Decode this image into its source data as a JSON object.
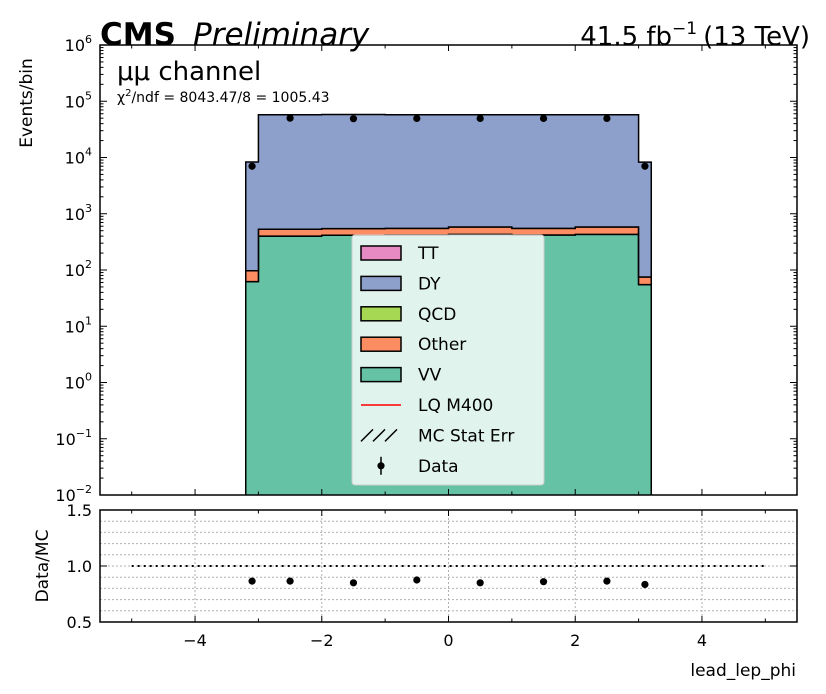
{
  "header": {
    "experiment": "CMS",
    "status": "Preliminary",
    "lumi_value": "41.5 fb",
    "lumi_exp": "−1",
    "energy": "(13 TeV)",
    "channel": "μμ channel",
    "chi2_label": "χ",
    "chi2_text": "/ndf = 8043.47/8 = 1005.43"
  },
  "chart_data": {
    "type": "histogram",
    "xlabel": "lead_lep_phi",
    "ylabel": "Events/bin",
    "xlim": [
      -5.5,
      5.5
    ],
    "ylim": [
      0.01,
      1000000
    ],
    "yscale": "log",
    "bins": [
      -3.2,
      -3.0,
      -2.0,
      -1.0,
      0.0,
      1.0,
      2.0,
      3.0,
      3.2
    ],
    "stack": [
      {
        "name": "VV",
        "color": "#66c2a5",
        "values": [
          62,
          400,
          415,
          420,
          430,
          420,
          430,
          55
        ]
      },
      {
        "name": "Other",
        "color": "#fc8d62",
        "values": [
          35,
          130,
          130,
          130,
          150,
          130,
          150,
          20
        ]
      },
      {
        "name": "QCD",
        "color": "#a6d854",
        "values": [
          0,
          0,
          0,
          0,
          0,
          0,
          0,
          0
        ]
      },
      {
        "name": "DY",
        "color": "#8da0cb",
        "values": [
          8200,
          57000,
          57500,
          57000,
          57000,
          57000,
          57000,
          8200
        ]
      },
      {
        "name": "TT",
        "color": "#e78ac3",
        "values": [
          0,
          0,
          0,
          0,
          0,
          0,
          0,
          0
        ]
      }
    ],
    "data_points": {
      "x": [
        -3.1,
        -2.5,
        -1.5,
        -0.5,
        0.5,
        1.5,
        2.5,
        3.1
      ],
      "y": [
        7000,
        50000,
        49000,
        49500,
        49500,
        49500,
        49500,
        7000
      ]
    },
    "legend": {
      "placement": "center",
      "entries": [
        {
          "label": "TT",
          "kind": "patch",
          "color": "#e78ac3"
        },
        {
          "label": "DY",
          "kind": "patch",
          "color": "#8da0cb"
        },
        {
          "label": "QCD",
          "kind": "patch",
          "color": "#a6d854"
        },
        {
          "label": "Other",
          "kind": "patch",
          "color": "#fc8d62"
        },
        {
          "label": "VV",
          "kind": "patch",
          "color": "#66c2a5"
        },
        {
          "label": "LQ M400",
          "kind": "line",
          "color": "#ff0000"
        },
        {
          "label": "MC Stat Err",
          "kind": "hatch",
          "color": "#000000"
        },
        {
          "label": "Data",
          "kind": "point",
          "color": "#000000"
        }
      ]
    },
    "xticks": [
      -4,
      -2,
      0,
      2,
      4
    ],
    "xtick_labels": [
      "−4",
      "−2",
      "0",
      "2",
      "4"
    ],
    "yticks_exp": [
      -2,
      -1,
      0,
      1,
      2,
      3,
      4,
      5,
      6
    ],
    "yticks_exp_labels": [
      "−2",
      "−1",
      "0",
      "1",
      "2",
      "3",
      "4",
      "5",
      "6"
    ],
    "ratio": {
      "ylabel": "Data/MC",
      "ylim": [
        0.5,
        1.5
      ],
      "yticks": [
        0.5,
        1.0,
        1.5
      ],
      "ytick_labels": [
        "0.5",
        "1.0",
        "1.5"
      ],
      "x": [
        -3.1,
        -2.5,
        -1.5,
        -0.5,
        0.5,
        1.5,
        2.5,
        3.1
      ],
      "y": [
        0.865,
        0.865,
        0.85,
        0.875,
        0.85,
        0.86,
        0.865,
        0.835
      ],
      "reference": 1.0,
      "reference_range": [
        -5,
        5
      ]
    }
  }
}
